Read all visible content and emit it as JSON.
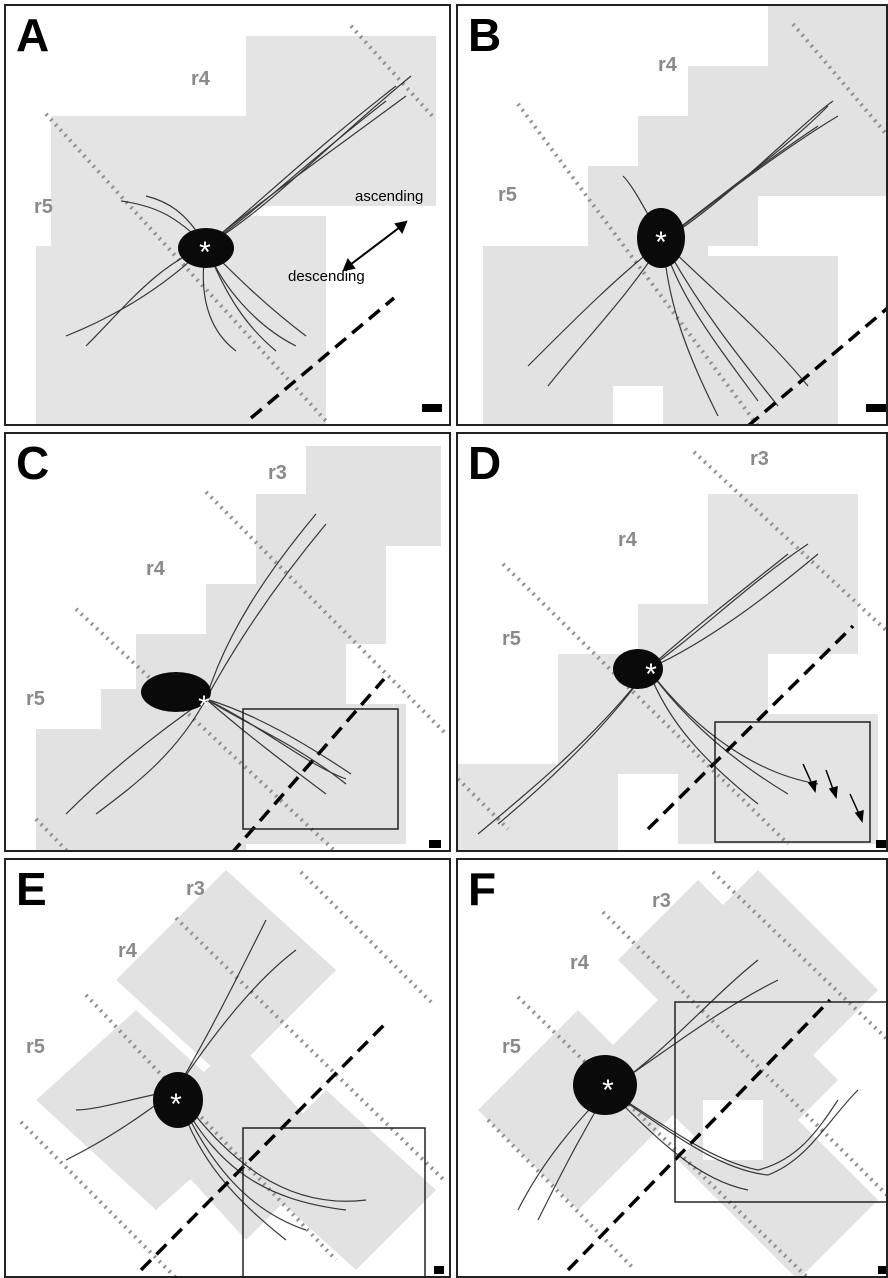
{
  "figure": {
    "panels": [
      {
        "id": "A",
        "letter": "A",
        "rhombomeres": [
          "r4",
          "r5"
        ],
        "direction_labels": {
          "ascending": "ascending",
          "descending": "descending"
        }
      },
      {
        "id": "B",
        "letter": "B",
        "rhombomeres": [
          "r4",
          "r5"
        ]
      },
      {
        "id": "C",
        "letter": "C",
        "rhombomeres": [
          "r3",
          "r4",
          "r5"
        ]
      },
      {
        "id": "D",
        "letter": "D",
        "rhombomeres": [
          "r3",
          "r4",
          "r5"
        ]
      },
      {
        "id": "E",
        "letter": "E",
        "rhombomeres": [
          "r3",
          "r4",
          "r5"
        ]
      },
      {
        "id": "F",
        "letter": "F",
        "rhombomeres": [
          "r3",
          "r4",
          "r5"
        ]
      }
    ],
    "injection_marker": "*",
    "colors": {
      "tissue": "#e2e2e2",
      "fibers": "#111111",
      "boundary_dotted": "#8f8f8f",
      "midline_dashed": "#000000",
      "label_gray": "#8a8a8a"
    }
  }
}
